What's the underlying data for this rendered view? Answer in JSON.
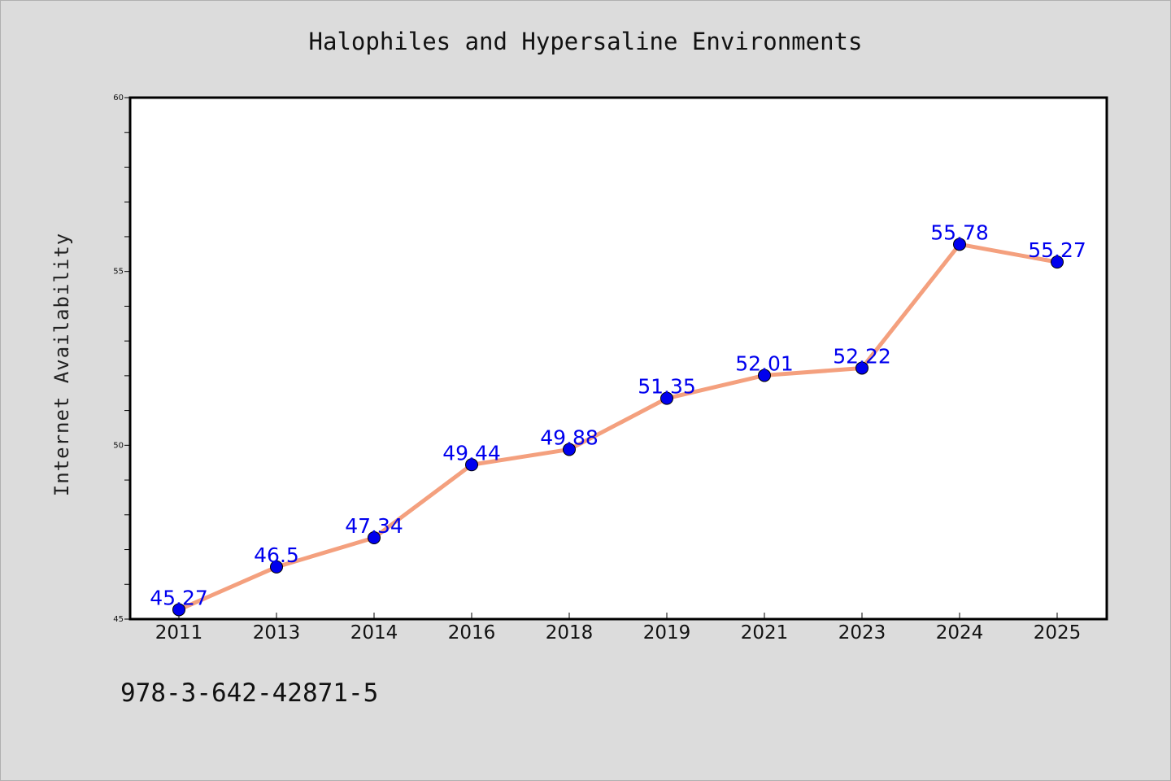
{
  "chart_data": {
    "type": "line",
    "title": "Halophiles and Hypersaline Environments",
    "xlabel": "",
    "ylabel": "Internet Availability",
    "categories": [
      "2011",
      "2013",
      "2014",
      "2016",
      "2018",
      "2019",
      "2021",
      "2023",
      "2024",
      "2025"
    ],
    "series": [
      {
        "values": [
          45.27,
          46.5,
          47.34,
          49.44,
          49.88,
          51.35,
          52.01,
          52.22,
          55.78,
          55.27
        ],
        "labels": [
          "45.27",
          "46.5",
          "47.34",
          "49.44",
          "49.88",
          "51.35",
          "52.01",
          "52.22",
          "55.78",
          "55.27"
        ],
        "line_color": "#f4a07e",
        "marker_color": "#0000ee"
      }
    ],
    "ylim": [
      45,
      60
    ],
    "yticks": [
      "45",
      "50",
      "55",
      "60"
    ],
    "grid": false,
    "legend": "none"
  },
  "footer": {
    "id_text": "978-3-642-42871-5"
  },
  "colors": {
    "background": "#dcdcdc",
    "plot_background": "#ffffff",
    "axis": "#000000"
  }
}
